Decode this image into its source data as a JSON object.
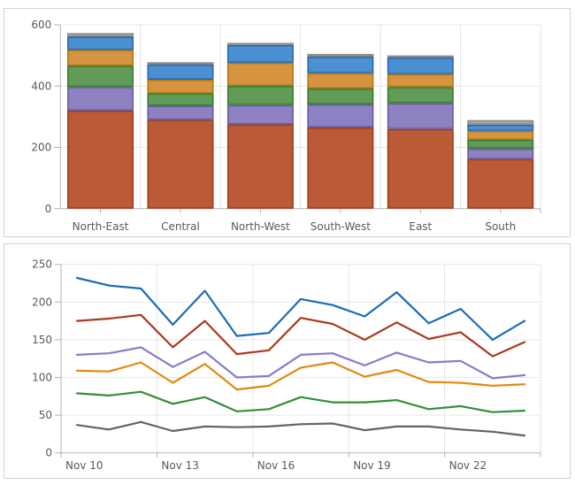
{
  "style": {
    "page_background": "#ffffff",
    "panel_border_color": "#d2d2d2",
    "grid_color": "#e7e7e7",
    "axis_color": "#b3b3b3",
    "label_color": "#555b61"
  },
  "chart_data": [
    {
      "type": "bar",
      "stacked": true,
      "title": "",
      "xlabel": "",
      "ylabel": "",
      "legend": "none",
      "grid": true,
      "ylim": [
        0,
        600
      ],
      "y_ticks": [
        "0",
        "200",
        "400",
        "600"
      ],
      "y_tick_values": [
        0,
        200,
        400,
        600
      ],
      "categories": [
        "North-East",
        "Central",
        "North-West",
        "South-West",
        "East",
        "South"
      ],
      "series": [
        {
          "key": "rust-series",
          "color": "#bb5a36",
          "border_color": "#9c3d18",
          "values": [
            320,
            290,
            275,
            265,
            260,
            162
          ]
        },
        {
          "key": "purple-series",
          "color": "#8d81c1",
          "border_color": "#665aa8",
          "values": [
            77,
            46,
            63,
            75,
            84,
            34
          ]
        },
        {
          "key": "green-series",
          "color": "#629a58",
          "border_color": "#347c28",
          "values": [
            69,
            40,
            63,
            52,
            53,
            29
          ]
        },
        {
          "key": "orange-series",
          "color": "#d69440",
          "border_color": "#b0740e",
          "values": [
            52,
            45,
            75,
            50,
            42,
            29
          ]
        },
        {
          "key": "blue-series",
          "color": "#4b90d2",
          "border_color": "#2766ab",
          "values": [
            43,
            49,
            58,
            54,
            54,
            20
          ]
        },
        {
          "key": "gray-series",
          "color": "#a6a6a6",
          "border_color": "#8a8a8a",
          "values": [
            12,
            8,
            7,
            9,
            7,
            15
          ]
        }
      ]
    },
    {
      "type": "line",
      "title": "",
      "xlabel": "",
      "ylabel": "",
      "legend": "none",
      "grid": true,
      "ylim": [
        0,
        250
      ],
      "y_ticks": [
        "0",
        "50",
        "100",
        "150",
        "200",
        "250"
      ],
      "y_tick_values": [
        0,
        50,
        100,
        150,
        200,
        250
      ],
      "x_tick_labels": [
        "Nov 10",
        "Nov 13",
        "Nov 16",
        "Nov 19",
        "Nov 22"
      ],
      "points_per_series": 15,
      "series": [
        {
          "key": "blue-series",
          "color": "#1c6cb4",
          "values": [
            232,
            222,
            218,
            170,
            215,
            155,
            159,
            204,
            196,
            181,
            213,
            172,
            191,
            150,
            175
          ]
        },
        {
          "key": "red-series",
          "color": "#a93a1d",
          "values": [
            175,
            178,
            183,
            140,
            175,
            131,
            136,
            179,
            171,
            150,
            173,
            151,
            160,
            128,
            147
          ]
        },
        {
          "key": "purple-series",
          "color": "#8a7bc7",
          "values": [
            130,
            132,
            140,
            114,
            134,
            100,
            102,
            130,
            132,
            116,
            133,
            120,
            122,
            99,
            103
          ]
        },
        {
          "key": "orange-series",
          "color": "#e1890f",
          "values": [
            109,
            108,
            120,
            93,
            118,
            84,
            89,
            113,
            120,
            101,
            110,
            94,
            93,
            89,
            91
          ]
        },
        {
          "key": "green-series",
          "color": "#329038",
          "values": [
            79,
            76,
            81,
            65,
            74,
            55,
            58,
            74,
            67,
            67,
            70,
            58,
            62,
            54,
            56
          ]
        },
        {
          "key": "gray-series",
          "color": "#636363",
          "values": [
            37,
            31,
            41,
            29,
            35,
            34,
            35,
            38,
            39,
            30,
            35,
            35,
            31,
            28,
            23
          ]
        }
      ]
    }
  ]
}
